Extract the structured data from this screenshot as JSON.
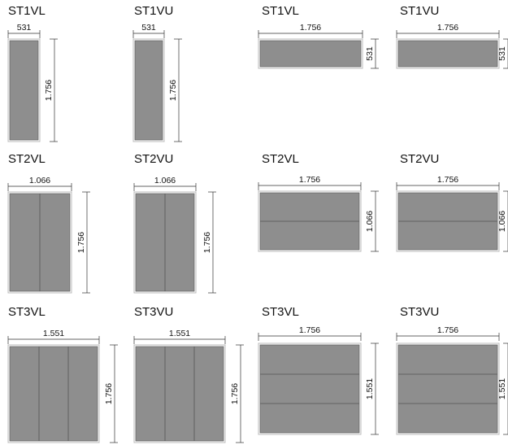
{
  "panels": [
    {
      "title": "ST1VL",
      "width": "531",
      "height": "1.756"
    },
    {
      "title": "ST1VU",
      "width": "531",
      "height": "1.756"
    },
    {
      "title": "ST1VL",
      "width": "1.756",
      "height": "531"
    },
    {
      "title": "ST1VU",
      "width": "1.756",
      "height": "531"
    },
    {
      "title": "ST2VL",
      "width": "1.066",
      "height": "1.756"
    },
    {
      "title": "ST2VU",
      "width": "1.066",
      "height": "1.756"
    },
    {
      "title": "ST2VL",
      "width": "1.756",
      "height": "1.066"
    },
    {
      "title": "ST2VU",
      "width": "1.756",
      "height": "1.066"
    },
    {
      "title": "ST3VL",
      "width": "1.551",
      "height": "1.756"
    },
    {
      "title": "ST3VU",
      "width": "1.551",
      "height": "1.756"
    },
    {
      "title": "ST3VL",
      "width": "1.756",
      "height": "1.551"
    },
    {
      "title": "ST3VU",
      "width": "1.756",
      "height": "1.551"
    }
  ]
}
